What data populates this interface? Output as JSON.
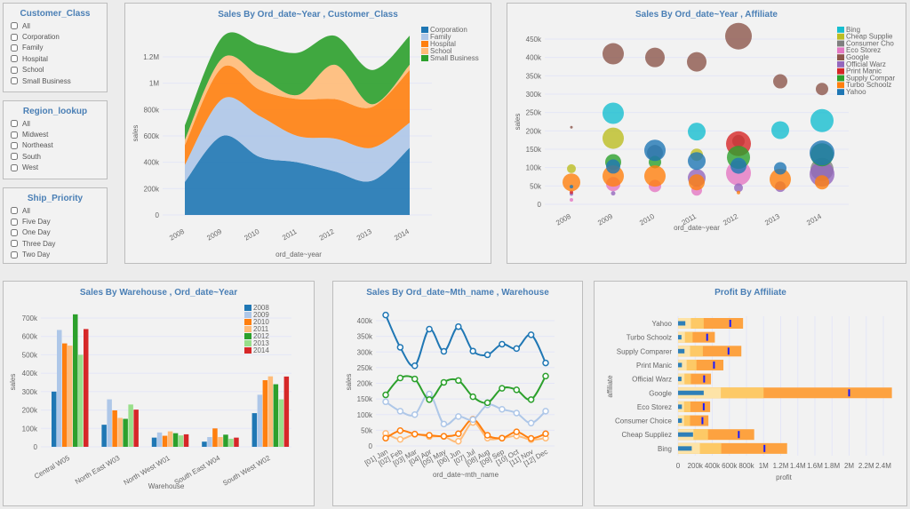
{
  "filters": [
    {
      "title": "Customer_Class",
      "options": [
        "All",
        "Corporation",
        "Family",
        "Hospital",
        "School",
        "Small Business"
      ]
    },
    {
      "title": "Region_lookup",
      "options": [
        "All",
        "Midwest",
        "Northeast",
        "South",
        "West"
      ]
    },
    {
      "title": "Ship_Priority",
      "options": [
        "All",
        "Five Day",
        "One Day",
        "Three Day",
        "Two Day"
      ]
    }
  ],
  "chart_data": [
    {
      "type": "area",
      "stacked": true,
      "title": "Sales By Ord_date~Year , Customer_Class",
      "xlabel": "ord_date~year",
      "ylabel": "sales",
      "x": [
        "2008",
        "2009",
        "2010",
        "2011",
        "2012",
        "2013",
        "2014"
      ],
      "ylim": [
        0,
        1400000
      ],
      "yticks": [
        0,
        200000,
        400000,
        600000,
        800000,
        1000000,
        1200000
      ],
      "ytick_labels": [
        "0",
        "200k",
        "400k",
        "600k",
        "800k",
        "1M",
        "1.2M"
      ],
      "legend": "top-right",
      "series": [
        {
          "name": "Corporation",
          "color": "#1f77b4",
          "values": [
            250000,
            600000,
            440000,
            400000,
            330000,
            260000,
            510000
          ]
        },
        {
          "name": "Family",
          "color": "#aec7e8",
          "values": [
            130000,
            280000,
            310000,
            200000,
            250000,
            250000,
            190000
          ]
        },
        {
          "name": "Hospital",
          "color": "#ff7f0e",
          "values": [
            150000,
            240000,
            200000,
            280000,
            300000,
            310000,
            400000
          ]
        },
        {
          "name": "School",
          "color": "#ffbb78",
          "values": [
            40000,
            70000,
            100000,
            30000,
            260000,
            20000,
            40000
          ]
        },
        {
          "name": "Small Business",
          "color": "#2ca02c",
          "values": [
            110000,
            160000,
            240000,
            320000,
            220000,
            260000,
            220000
          ]
        }
      ]
    },
    {
      "type": "scatter",
      "title": "Sales By Ord_date~Year , Affiliate",
      "xlabel": "ord_date~year",
      "ylabel": "sales",
      "x": [
        "2008",
        "2009",
        "2010",
        "2011",
        "2012",
        "2013",
        "2014"
      ],
      "ylim": [
        0,
        470000
      ],
      "yticks": [
        0,
        50000,
        100000,
        150000,
        200000,
        250000,
        300000,
        350000,
        400000,
        450000
      ],
      "ytick_labels": [
        "0",
        "50k",
        "100k",
        "150k",
        "200k",
        "250k",
        "300k",
        "350k",
        "400k",
        "450k"
      ],
      "legend": "top-right",
      "series": [
        {
          "name": "Bing",
          "legend_label": "Bing",
          "color": "#17becf",
          "points": [
            [
              "2009",
              248000,
              12
            ],
            [
              "2011",
              198000,
              10
            ],
            [
              "2013",
              202000,
              10
            ],
            [
              "2014",
              228000,
              13
            ]
          ]
        },
        {
          "name": "Cheap Suppliez",
          "legend_label": "Cheap Supplie",
          "color": "#bcbd22",
          "points": [
            [
              "2008",
              97000,
              5
            ],
            [
              "2009",
              180000,
              12
            ],
            [
              "2011",
              135000,
              7
            ]
          ]
        },
        {
          "name": "Consumer Choice",
          "legend_label": "Consumer Cho",
          "color": "#7f7f7f",
          "points": [
            [
              "2010",
              140000,
              9
            ],
            [
              "2012",
              172000,
              7
            ],
            [
              "2014",
              95000,
              13
            ]
          ]
        },
        {
          "name": "Eco Storez",
          "legend_label": "Eco Storez",
          "color": "#e377c2",
          "points": [
            [
              "2008",
              12000,
              2
            ],
            [
              "2009",
              55000,
              8
            ],
            [
              "2010",
              50000,
              7
            ],
            [
              "2011",
              38000,
              6
            ],
            [
              "2012",
              85000,
              14
            ]
          ]
        },
        {
          "name": "Google",
          "legend_label": "Google",
          "color": "#8c564b",
          "points": [
            [
              "2008",
              210000,
              1.5
            ],
            [
              "2009",
              410000,
              12
            ],
            [
              "2010",
              400000,
              11
            ],
            [
              "2011",
              388000,
              11
            ],
            [
              "2012",
              458000,
              15
            ],
            [
              "2013",
              335000,
              8
            ],
            [
              "2014",
              314000,
              7
            ]
          ]
        },
        {
          "name": "Official Warz",
          "legend_label": "Official Warz",
          "color": "#9467bd",
          "points": [
            [
              "2008",
              28000,
              2
            ],
            [
              "2009",
              30000,
              2.5
            ],
            [
              "2011",
              72000,
              10
            ],
            [
              "2012",
              45000,
              5
            ],
            [
              "2013",
              48000,
              6
            ],
            [
              "2014",
              82000,
              14
            ]
          ]
        },
        {
          "name": "Print Manic",
          "legend_label": "Print Manic",
          "color": "#d62728",
          "points": [
            [
              "2008",
              33000,
              2
            ],
            [
              "2012",
              165000,
              14
            ]
          ]
        },
        {
          "name": "Supply Comparer",
          "legend_label": "Supply Compar",
          "color": "#2ca02c",
          "points": [
            [
              "2009",
              115000,
              9
            ],
            [
              "2010",
              115000,
              7
            ],
            [
              "2012",
              128000,
              13
            ],
            [
              "2014",
              135000,
              13
            ]
          ]
        },
        {
          "name": "Turbo Schoolz",
          "legend_label": "Turbo Schoolz",
          "color": "#ff7f0e",
          "points": [
            [
              "2008",
              60000,
              10
            ],
            [
              "2009",
              77000,
              12
            ],
            [
              "2010",
              77000,
              12
            ],
            [
              "2011",
              60000,
              9
            ],
            [
              "2012",
              32000,
              2
            ],
            [
              "2013",
              68000,
              12
            ],
            [
              "2014",
              60000,
              8
            ]
          ]
        },
        {
          "name": "Yahoo",
          "legend_label": "Yahoo",
          "color": "#1f77b4",
          "points": [
            [
              "2008",
              48000,
              2
            ],
            [
              "2009",
              103000,
              8
            ],
            [
              "2010",
              147000,
              12
            ],
            [
              "2011",
              118000,
              10
            ],
            [
              "2012",
              105000,
              9
            ],
            [
              "2013",
              98000,
              7
            ],
            [
              "2014",
              140000,
              14
            ]
          ]
        }
      ]
    },
    {
      "type": "bar",
      "title": "Sales By Warehouse , Ord_date~Year",
      "xlabel": "Warehouse",
      "ylabel": "sales",
      "categories": [
        "Central W05",
        "North East W03",
        "North West W01",
        "South East W04",
        "South West W02"
      ],
      "ylim": [
        0,
        730000
      ],
      "yticks": [
        0,
        100000,
        200000,
        300000,
        400000,
        500000,
        600000,
        700000
      ],
      "ytick_labels": [
        "0",
        "100k",
        "200k",
        "300k",
        "400k",
        "500k",
        "600k",
        "700k"
      ],
      "legend": "top-right",
      "series": [
        {
          "name": "2008",
          "color": "#1f77b4",
          "values": [
            300000,
            120000,
            50000,
            28000,
            183000
          ]
        },
        {
          "name": "2009",
          "color": "#aec7e8",
          "values": [
            635000,
            258000,
            78000,
            53000,
            283000
          ]
        },
        {
          "name": "2010",
          "color": "#ff7f0e",
          "values": [
            562000,
            198000,
            60000,
            100000,
            362000
          ]
        },
        {
          "name": "2011",
          "color": "#ffbb78",
          "values": [
            550000,
            157000,
            84000,
            53000,
            383000
          ]
        },
        {
          "name": "2012",
          "color": "#2ca02c",
          "values": [
            720000,
            152000,
            74000,
            66000,
            340000
          ]
        },
        {
          "name": "2013",
          "color": "#98df8a",
          "values": [
            500000,
            230000,
            62000,
            44000,
            258000
          ]
        },
        {
          "name": "2014",
          "color": "#d62728",
          "values": [
            640000,
            202000,
            68000,
            50000,
            382000
          ]
        }
      ]
    },
    {
      "type": "line",
      "title": "Sales By Ord_date~Mth_name , Warehouse",
      "xlabel": "ord_date~mth_name",
      "ylabel": "sales",
      "categories": [
        "[01] Jan",
        "[02] Feb",
        "[03] Mar",
        "[04] Apr",
        "[05] May",
        "[06] Jun",
        "[07] Jul",
        "[08] Aug",
        "[09] Sep",
        "[10] Oct",
        "[11] Nov",
        "[12] Dec"
      ],
      "ylim": [
        0,
        420000
      ],
      "yticks": [
        0,
        50000,
        100000,
        150000,
        200000,
        250000,
        300000,
        350000,
        400000
      ],
      "ytick_labels": [
        "0",
        "50k",
        "100k",
        "150k",
        "200k",
        "250k",
        "300k",
        "350k",
        "400k"
      ],
      "series": [
        {
          "color": "#ffbb78",
          "values": [
            40000,
            21000,
            37000,
            30000,
            30000,
            15000,
            75000,
            25000,
            25000,
            32000,
            20000,
            25000
          ]
        },
        {
          "color": "#ff7f0e",
          "values": [
            25000,
            49000,
            38000,
            34000,
            31000,
            39000,
            85000,
            34000,
            25000,
            45000,
            24000,
            39000
          ]
        },
        {
          "color": "#aec7e8",
          "values": [
            141000,
            111000,
            100000,
            166000,
            70000,
            94000,
            84000,
            131000,
            117000,
            105000,
            73000,
            111000
          ]
        },
        {
          "color": "#2ca02c",
          "values": [
            163000,
            217000,
            214000,
            148000,
            203000,
            209000,
            157000,
            138000,
            184000,
            179000,
            148000,
            223000
          ]
        },
        {
          "color": "#1f77b4",
          "values": [
            418000,
            315000,
            256000,
            373000,
            302000,
            381000,
            303000,
            291000,
            325000,
            311000,
            355000,
            265000
          ]
        }
      ]
    },
    {
      "type": "bullet",
      "title": "Profit By Affiliate",
      "xlabel": "profit",
      "ylabel": "affiliate",
      "xlim": [
        0,
        2500000
      ],
      "xticks": [
        0,
        200000,
        400000,
        600000,
        800000,
        1000000,
        1200000,
        1400000,
        1600000,
        1800000,
        2000000,
        2200000,
        2400000
      ],
      "xtick_labels": [
        "0",
        "200k",
        "400k",
        "600k",
        "800k",
        "1M",
        "1.2M",
        "1.4M",
        "1.6M",
        "1.8M",
        "2M",
        "2.2M",
        "2.4M"
      ],
      "colors": {
        "range1": "#fde3a7",
        "range2": "#fdc966",
        "range3": "#fda240",
        "measure": "#2e7fb8",
        "marker": "#1a1aff"
      },
      "rows": [
        {
          "label": "Yahoo",
          "ranges": [
            150000,
            300000,
            760000
          ],
          "measure": 85000,
          "marker": 610000
        },
        {
          "label": "Turbo Schoolz",
          "ranges": [
            80000,
            170000,
            430000
          ],
          "measure": 40000,
          "marker": 340000
        },
        {
          "label": "Supply Comparer",
          "ranges": [
            140000,
            290000,
            740000
          ],
          "measure": 75000,
          "marker": 590000
        },
        {
          "label": "Print Manic",
          "ranges": [
            100000,
            215000,
            530000
          ],
          "measure": 45000,
          "marker": 420000
        },
        {
          "label": "Official Warz",
          "ranges": [
            75000,
            150000,
            385000
          ],
          "measure": 40000,
          "marker": 305000
        },
        {
          "label": "Google",
          "ranges": [
            500000,
            1000000,
            2500000
          ],
          "measure": 300000,
          "marker": 2000000
        },
        {
          "label": "Eco Storez",
          "ranges": [
            70000,
            145000,
            375000
          ],
          "measure": 45000,
          "marker": 300000
        },
        {
          "label": "Consumer Choice",
          "ranges": [
            70000,
            140000,
            355000
          ],
          "measure": 45000,
          "marker": 285000
        },
        {
          "label": "Cheap Suppliez",
          "ranges": [
            180000,
            350000,
            890000
          ],
          "measure": 175000,
          "marker": 710000
        },
        {
          "label": "Bing",
          "ranges": [
            255000,
            505000,
            1275000
          ],
          "measure": 160000,
          "marker": 1010000
        }
      ]
    }
  ]
}
